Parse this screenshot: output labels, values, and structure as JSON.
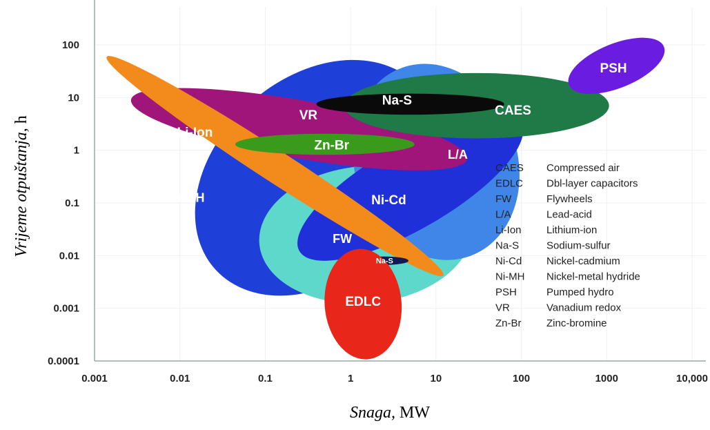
{
  "chart_data": {
    "type": "scatter",
    "title": "",
    "xlabel": {
      "italic": "Snaga,",
      "unit": "MW"
    },
    "ylabel": {
      "italic": "Vrijeme otpuštanja,",
      "unit": "h"
    },
    "xscale": "log",
    "yscale": "log",
    "xlim": [
      0.001,
      10000
    ],
    "ylim": [
      0.0001,
      100
    ],
    "x_ticks": [
      "0.001",
      "0.01",
      "0.1",
      "1",
      "10",
      "100",
      "1000",
      "10,000"
    ],
    "y_ticks": [
      "0.0001",
      "0.001",
      "0.01",
      "0.1",
      "1",
      "10",
      "100"
    ],
    "grid": true,
    "regions": [
      {
        "label": "Ni-MH",
        "color": "#1f3fd9",
        "cx": 0.4,
        "cy": 0.3,
        "rx_dec": 1.6,
        "ry_dec": 1.9,
        "rot": -42,
        "label_size": 18,
        "lx": 0.012,
        "ly": 0.12
      },
      {
        "label": "FW",
        "color": "#5fd8cc",
        "cx": 1.5,
        "cy": 0.025,
        "rx_dec": 1.25,
        "ry_dec": 1.3,
        "rot": -5,
        "label_size": 18,
        "lx": 0.8,
        "ly": 0.02
      },
      {
        "label": "L/A",
        "color": "#3f86e8",
        "cx": 10,
        "cy": 0.6,
        "rx_dec": 0.95,
        "ry_dec": 1.9,
        "rot": -20,
        "label_size": 18,
        "lx": 18,
        "ly": 0.8
      },
      {
        "label": "Ni-Cd",
        "color": "#2030d8",
        "cx": 5,
        "cy": 0.2,
        "rx_dec": 1.5,
        "ry_dec": 0.8,
        "rot": -30,
        "label_size": 19,
        "lx": 2.8,
        "ly": 0.11
      },
      {
        "label": "VR",
        "color": "#a0157a",
        "cx": 0.25,
        "cy": 2.5,
        "rx_dec": 2.0,
        "ry_dec": 0.55,
        "rot": 10,
        "label_size": 19,
        "lx": 0.32,
        "ly": 4.5
      },
      {
        "label": "Li-Ion",
        "color": "#f28a1c",
        "cx": 0.13,
        "cy": 0.5,
        "rx_dec": 2.35,
        "ry_dec": 0.3,
        "rot": 33,
        "label_size": 19,
        "lx": 0.015,
        "ly": 2.1
      },
      {
        "label": "Zn-Br",
        "color": "#3a9a1c",
        "cx": 0.5,
        "cy": 1.3,
        "rx_dec": 1.05,
        "ry_dec": 0.2,
        "rot": 0,
        "label_size": 19,
        "lx": 0.6,
        "ly": 1.2
      },
      {
        "label": "CAES",
        "color": "#1f7a48",
        "cx": 30,
        "cy": 7,
        "rx_dec": 1.55,
        "ry_dec": 0.62,
        "rot": 0,
        "label_size": 19,
        "lx": 80,
        "ly": 5.5
      },
      {
        "label": "Na-S",
        "color": "#0a0a0a",
        "cx": 5,
        "cy": 7.5,
        "rx_dec": 1.1,
        "ry_dec": 0.2,
        "rot": 0,
        "label_size": 19,
        "lx": 3.5,
        "ly": 8.5
      },
      {
        "label": "PSH",
        "color": "#6a1de0",
        "cx": 1300,
        "cy": 40,
        "rx_dec": 0.6,
        "ry_dec": 0.42,
        "rot": -22,
        "label_size": 19,
        "lx": 1200,
        "ly": 35
      },
      {
        "label": "Na-S",
        "color": "#0e1b55",
        "cx": 2.5,
        "cy": 0.008,
        "rx_dec": 0.28,
        "ry_dec": 0.08,
        "rot": 0,
        "label_size": 11,
        "lx": 2.5,
        "ly": 0.0078
      },
      {
        "label": "EDLC",
        "color": "#e8261a",
        "cx": 1.4,
        "cy": 0.0012,
        "rx_dec": 0.45,
        "ry_dec": 1.05,
        "rot": -5,
        "label_size": 19,
        "lx": 1.4,
        "ly": 0.0013
      }
    ],
    "legend": [
      {
        "abbr": "CAES",
        "name": "Compressed air"
      },
      {
        "abbr": "EDLC",
        "name": "Dbl-layer capacitors"
      },
      {
        "abbr": "FW",
        "name": "Flywheels"
      },
      {
        "abbr": "L/A",
        "name": "Lead-acid"
      },
      {
        "abbr": "Li-Ion",
        "name": "Lithium-ion"
      },
      {
        "abbr": "Na-S",
        "name": "Sodium-sulfur"
      },
      {
        "abbr": "Ni-Cd",
        "name": "Nickel-cadmium"
      },
      {
        "abbr": "Ni-MH",
        "name": "Nickel-metal hydride"
      },
      {
        "abbr": "PSH",
        "name": "Pumped hydro"
      },
      {
        "abbr": "VR",
        "name": "Vanadium redox"
      },
      {
        "abbr": "Zn-Br",
        "name": "Zinc-bromine"
      }
    ]
  }
}
